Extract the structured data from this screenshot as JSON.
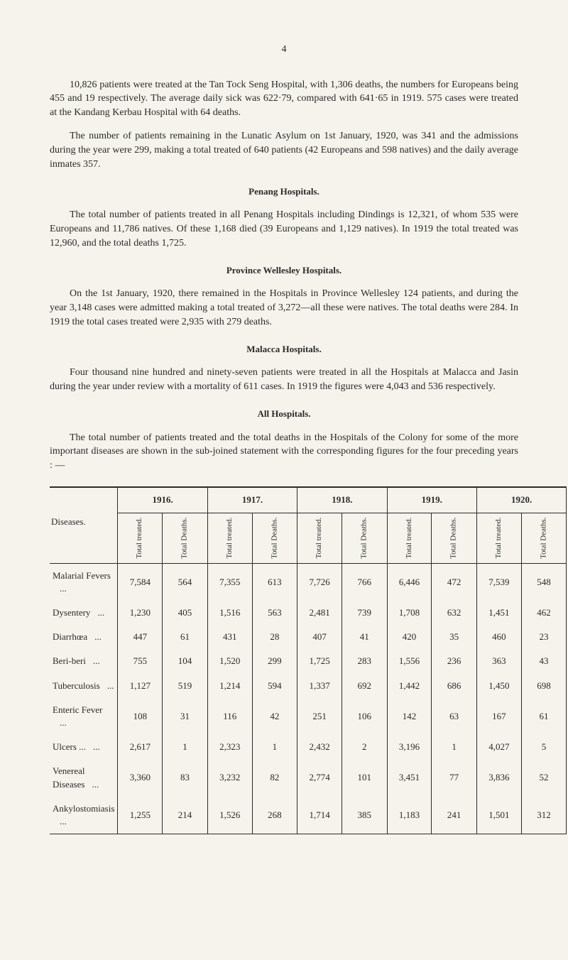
{
  "page_number": "4",
  "paragraphs": {
    "p1": "10,826 patients were treated at the Tan Tock Seng Hospital, with 1,306 deaths, the numbers for Europeans being 455 and 19 respectively. The average daily sick was 622·79, compared with 641·65 in 1919. 575 cases were treated at the Kandang Kerbau Hospital with 64 deaths.",
    "p2": "The number of patients remaining in the Lunatic Asylum on 1st January, 1920, was 341 and the admissions during the year were 299, making a total treated of 640 patients (42 Europeans and 598 natives) and the daily average inmates 357.",
    "p3": "The total number of patients treated in all Penang Hospitals including Dindings is 12,321, of whom 535 were Europeans and 11,786 natives. Of these 1,168 died (39 Europeans and 1,129 natives). In 1919 the total treated was 12,960, and the total deaths 1,725.",
    "p4": "On the 1st January, 1920, there remained in the Hospitals in Province Wellesley 124 patients, and during the year 3,148 cases were admitted making a total treated of 3,272—all these were natives. The total deaths were 284. In 1919 the total cases treated were 2,935 with 279 deaths.",
    "p5": "Four thousand nine hundred and ninety-seven patients were treated in all the Hospitals at Malacca and Jasin during the year under review with a mortality of 611 cases. In 1919 the figures were 4,043 and 536 respectively.",
    "p6": "The total number of patients treated and the total deaths in the Hospitals of the Colony for some of the more important diseases are shown in the sub-joined statement with the corresponding figures for the four preceding years : —"
  },
  "headings": {
    "h1": "Penang Hospitals.",
    "h2": "Province Wellesley Hospitals.",
    "h3": "Malacca Hospitals.",
    "h4": "All Hospitals."
  },
  "table": {
    "years": [
      "1916.",
      "1917.",
      "1918.",
      "1919.",
      "1920."
    ],
    "diseases_label": "Diseases.",
    "subheaders": {
      "treated": "Total treated.",
      "deaths": "Total Deaths."
    },
    "rows": [
      {
        "disease": "Malarial Fevers",
        "dots": "...",
        "v": [
          "7,584",
          "564",
          "7,355",
          "613",
          "7,726",
          "766",
          "6,446",
          "472",
          "7,539",
          "548"
        ]
      },
      {
        "disease": "Dysentery",
        "dots": "...",
        "v": [
          "1,230",
          "405",
          "1,516",
          "563",
          "2,481",
          "739",
          "1,708",
          "632",
          "1,451",
          "462"
        ]
      },
      {
        "disease": "Diarrhœa",
        "dots": "...",
        "v": [
          "447",
          "61",
          "431",
          "28",
          "407",
          "41",
          "420",
          "35",
          "460",
          "23"
        ]
      },
      {
        "disease": "Beri-beri",
        "dots": "...",
        "v": [
          "755",
          "104",
          "1,520",
          "299",
          "1,725",
          "283",
          "1,556",
          "236",
          "363",
          "43"
        ]
      },
      {
        "disease": "Tuberculosis",
        "dots": "...",
        "v": [
          "1,127",
          "519",
          "1,214",
          "594",
          "1,337",
          "692",
          "1,442",
          "686",
          "1,450",
          "698"
        ]
      },
      {
        "disease": "Enteric Fever",
        "dots": "...",
        "v": [
          "108",
          "31",
          "116",
          "42",
          "251",
          "106",
          "142",
          "63",
          "167",
          "61"
        ]
      },
      {
        "disease": "Ulcers   ...",
        "dots": "...",
        "v": [
          "2,617",
          "1",
          "2,323",
          "1",
          "2,432",
          "2",
          "3,196",
          "1",
          "4,027",
          "5"
        ]
      },
      {
        "disease": "Venereal Diseases",
        "dots": "...",
        "v": [
          "3,360",
          "83",
          "3,232",
          "82",
          "2,774",
          "101",
          "3,451",
          "77",
          "3,836",
          "52"
        ]
      },
      {
        "disease": "Ankylostomiasis",
        "dots": "...",
        "v": [
          "1,255",
          "214",
          "1,526",
          "268",
          "1,714",
          "385",
          "1,183",
          "241",
          "1,501",
          "312"
        ]
      }
    ],
    "colors": {
      "border": "#2a2a2a",
      "text": "#2a2a2a",
      "background": "#f5f3ec"
    },
    "font_sizes": {
      "body": 14,
      "heading": 13,
      "table": 13,
      "subheader": 11
    }
  }
}
